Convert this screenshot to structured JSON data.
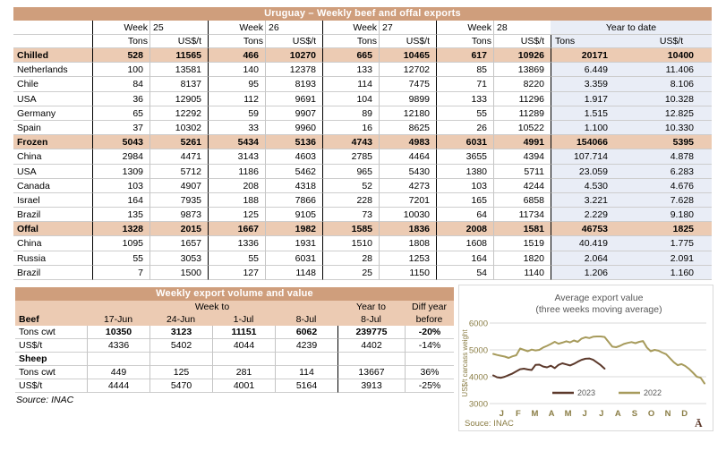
{
  "colors": {
    "header_bar": "#CF9E7C",
    "section_row": "#ECCBB3",
    "ytd_background": "#E9EDF6",
    "series_2023": "#5C392B",
    "series_2022": "#A79B5C",
    "axis_text": "#8A7D45",
    "chart_title_text": "#595959"
  },
  "main_table": {
    "title": "Uruguay – Weekly beef and offal exports",
    "weeks": [
      {
        "label": "Week",
        "number": "25"
      },
      {
        "label": "Week",
        "number": "26"
      },
      {
        "label": "Week",
        "number": "27"
      },
      {
        "label": "Week",
        "number": "28"
      }
    ],
    "unit_headers": [
      "Tons",
      "US$/t"
    ],
    "ytd": {
      "label": "Year to date",
      "unit_headers": [
        "Tons",
        "US$/t"
      ]
    },
    "rows": [
      {
        "label": "Chilled",
        "section": true,
        "values": [
          "528",
          "11565",
          "466",
          "10270",
          "665",
          "10465",
          "617",
          "10926",
          "20171",
          "10400"
        ]
      },
      {
        "label": "Netherlands",
        "section": false,
        "values": [
          "100",
          "13581",
          "140",
          "12378",
          "133",
          "12702",
          "85",
          "13869",
          "6.449",
          "11.406"
        ]
      },
      {
        "label": "Chile",
        "section": false,
        "values": [
          "84",
          "8137",
          "95",
          "8193",
          "114",
          "7475",
          "71",
          "8220",
          "3.359",
          "8.106"
        ]
      },
      {
        "label": "USA",
        "section": false,
        "values": [
          "36",
          "12905",
          "112",
          "9691",
          "104",
          "9899",
          "133",
          "11296",
          "1.917",
          "10.328"
        ]
      },
      {
        "label": "Germany",
        "section": false,
        "values": [
          "65",
          "12292",
          "59",
          "9907",
          "89",
          "12180",
          "55",
          "11289",
          "1.515",
          "12.825"
        ]
      },
      {
        "label": "Spain",
        "section": false,
        "values": [
          "37",
          "10302",
          "33",
          "9960",
          "16",
          "8625",
          "26",
          "10522",
          "1.100",
          "10.330"
        ]
      },
      {
        "label": "Frozen",
        "section": true,
        "values": [
          "5043",
          "5261",
          "5434",
          "5136",
          "4743",
          "4983",
          "6031",
          "4991",
          "154066",
          "5395"
        ]
      },
      {
        "label": "China",
        "section": false,
        "values": [
          "2984",
          "4471",
          "3143",
          "4603",
          "2785",
          "4464",
          "3655",
          "4394",
          "107.714",
          "4.878"
        ]
      },
      {
        "label": "USA",
        "section": false,
        "values": [
          "1309",
          "5712",
          "1186",
          "5462",
          "965",
          "5430",
          "1380",
          "5711",
          "23.059",
          "6.283"
        ]
      },
      {
        "label": "Canada",
        "section": false,
        "values": [
          "103",
          "4907",
          "208",
          "4318",
          "52",
          "4273",
          "103",
          "4244",
          "4.530",
          "4.676"
        ]
      },
      {
        "label": "Israel",
        "section": false,
        "values": [
          "164",
          "7935",
          "188",
          "7866",
          "228",
          "7201",
          "165",
          "6858",
          "3.221",
          "7.628"
        ]
      },
      {
        "label": "Brazil",
        "section": false,
        "values": [
          "135",
          "9873",
          "125",
          "9105",
          "73",
          "10030",
          "64",
          "11734",
          "2.229",
          "9.180"
        ]
      },
      {
        "label": "Offal",
        "section": true,
        "values": [
          "1328",
          "2015",
          "1667",
          "1982",
          "1585",
          "1836",
          "2008",
          "1581",
          "46753",
          "1825"
        ]
      },
      {
        "label": "China",
        "section": false,
        "values": [
          "1095",
          "1657",
          "1336",
          "1931",
          "1510",
          "1808",
          "1608",
          "1519",
          "40.419",
          "1.775"
        ]
      },
      {
        "label": "Russia",
        "section": false,
        "values": [
          "55",
          "3053",
          "55",
          "6031",
          "28",
          "1253",
          "164",
          "1820",
          "2.064",
          "2.091"
        ]
      },
      {
        "label": "Brazil",
        "section": false,
        "values": [
          "7",
          "1500",
          "127",
          "1148",
          "25",
          "1150",
          "54",
          "1140",
          "1.206",
          "1.160"
        ]
      }
    ]
  },
  "weekly_table": {
    "title": "Weekly export volume and value",
    "group_headers": {
      "week_to": "Week to",
      "year_to": "Year to",
      "diff_year": "Diff year"
    },
    "column_headers": [
      "Beef",
      "17-Jun",
      "24-Jun",
      "1-Jul",
      "8-Jul",
      "8-Jul",
      "before"
    ],
    "rows": [
      {
        "label": "Tons cwt",
        "section": false,
        "bold_values": true,
        "values": [
          "10350",
          "3123",
          "11151",
          "6062",
          "239775",
          "-20%"
        ]
      },
      {
        "label": "US$/t",
        "section": false,
        "bold_values": false,
        "values": [
          "4336",
          "5402",
          "4044",
          "4239",
          "4402",
          "-14%"
        ]
      },
      {
        "label": "Sheep",
        "section": true,
        "bold_values": false,
        "values": [
          "",
          "",
          "",
          "",
          "",
          ""
        ]
      },
      {
        "label": "Tons cwt",
        "section": false,
        "bold_values": false,
        "values": [
          "449",
          "125",
          "281",
          "114",
          "13667",
          "36%"
        ]
      },
      {
        "label": "US$/t",
        "section": false,
        "bold_values": false,
        "values": [
          "4444",
          "5470",
          "4001",
          "5164",
          "3913",
          "-25%"
        ]
      }
    ],
    "source": "Source: INAC"
  },
  "chart_data": {
    "type": "line",
    "title": "Average export  value",
    "subtitle": "(three weeks moving average)",
    "ylabel": "US$/t carcass weight",
    "ylim": [
      3000,
      6000
    ],
    "yticks": [
      3000,
      4000,
      5000,
      6000
    ],
    "xticklabels": [
      "J",
      "F",
      "M",
      "A",
      "M",
      "J",
      "J",
      "A",
      "S",
      "O",
      "N",
      "D"
    ],
    "grid": true,
    "legend_position": "inside-bottom",
    "source": "Souce: INAC",
    "logo": "Ā",
    "series": [
      {
        "name": "2023",
        "color": "#5C392B",
        "values": [
          4050,
          3980,
          3960,
          4000,
          4060,
          4120,
          4200,
          4280,
          4300,
          4270,
          4250,
          4440,
          4450,
          4380,
          4350,
          4410,
          4320,
          4440,
          4500,
          4460,
          4420,
          4480,
          4560,
          4630,
          4670,
          4680,
          4630,
          4530,
          4430,
          4300
        ]
      },
      {
        "name": "2022",
        "color": "#A79B5C",
        "values": [
          4850,
          4810,
          4780,
          4750,
          4700,
          4760,
          4800,
          5050,
          5000,
          4950,
          5010,
          4980,
          5000,
          5090,
          5150,
          5220,
          5300,
          5230,
          5270,
          5320,
          5280,
          5350,
          5300,
          5420,
          5470,
          5440,
          5490,
          5500,
          5500,
          5480,
          5300,
          5120,
          5100,
          5150,
          5220,
          5260,
          5290,
          5250,
          5300,
          5330,
          5090,
          4950,
          5000,
          4970,
          4900,
          4840,
          4690,
          4540,
          4430,
          4470,
          4400,
          4290,
          4150,
          4000,
          3960,
          3750
        ]
      }
    ]
  }
}
